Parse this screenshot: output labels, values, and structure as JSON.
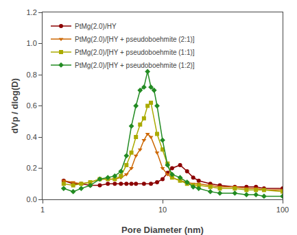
{
  "chart_data": {
    "type": "line",
    "xlabel": "Pore Diameter (nm)",
    "ylabel": "dVp / dlog(D)",
    "log": "x",
    "xlim": [
      1,
      100
    ],
    "xticks": [
      1,
      10,
      100
    ],
    "ylim": [
      0.0,
      1.2
    ],
    "yticks": [
      {
        "value": 0.0,
        "label": "0.0"
      },
      0.2,
      0.4,
      0.6,
      0.8,
      {
        "value": 1.0,
        "label": "1.0"
      },
      1.2
    ],
    "grid": false,
    "legend": "upper left",
    "series": [
      {
        "name": "PtMg(2.0)/HY",
        "color": "#8B0000",
        "marker": "circle",
        "x": [
          1.5,
          1.8,
          2.1,
          2.5,
          3.0,
          3.5,
          4.0,
          4.5,
          5.0,
          5.5,
          6.0,
          7.0,
          8.0,
          9.0,
          10.0,
          11.0,
          12.0,
          14.0,
          16.0,
          18.0,
          20.0,
          25.0,
          30.0,
          40.0,
          50.0,
          60.0,
          70.0,
          100.0
        ],
        "values": [
          0.12,
          0.1,
          0.1,
          0.09,
          0.09,
          0.1,
          0.1,
          0.1,
          0.1,
          0.1,
          0.1,
          0.1,
          0.1,
          0.11,
          0.13,
          0.17,
          0.2,
          0.22,
          0.18,
          0.14,
          0.12,
          0.1,
          0.09,
          0.08,
          0.08,
          0.08,
          0.07,
          0.07
        ]
      },
      {
        "name": "PtMg(2.0)/[HY + pseudoboehmite (2:1)]",
        "color": "#CC6600",
        "marker": "triangle-down",
        "x": [
          1.5,
          1.8,
          2.1,
          2.5,
          3.0,
          3.5,
          4.0,
          4.5,
          5.0,
          5.5,
          6.0,
          6.5,
          7.0,
          7.5,
          8.0,
          9.0,
          10.0,
          11.0,
          12.0,
          14.0,
          16.0,
          18.0,
          20.0,
          25.0,
          30.0,
          40.0,
          50.0,
          60.0,
          70.0,
          100.0
        ],
        "values": [
          0.12,
          0.11,
          0.1,
          0.11,
          0.13,
          0.13,
          0.13,
          0.14,
          0.16,
          0.2,
          0.28,
          0.32,
          0.38,
          0.42,
          0.4,
          0.3,
          0.2,
          0.16,
          0.14,
          0.12,
          0.11,
          0.1,
          0.1,
          0.09,
          0.08,
          0.08,
          0.07,
          0.07,
          0.06,
          0.06
        ]
      },
      {
        "name": "PtMg(2.0)/[HY + pseudoboehmite (1:1)]",
        "color": "#AAAA00",
        "marker": "square",
        "x": [
          1.5,
          1.8,
          2.1,
          2.5,
          3.0,
          3.5,
          4.0,
          4.5,
          5.0,
          5.5,
          6.0,
          6.5,
          7.0,
          7.5,
          8.0,
          9.0,
          10.0,
          11.0,
          12.0,
          14.0,
          16.0,
          18.0,
          20.0,
          25.0,
          30.0,
          40.0,
          50.0,
          60.0,
          70.0,
          100.0
        ],
        "values": [
          0.1,
          0.09,
          0.1,
          0.11,
          0.13,
          0.13,
          0.13,
          0.15,
          0.22,
          0.3,
          0.4,
          0.48,
          0.52,
          0.6,
          0.62,
          0.42,
          0.32,
          0.23,
          0.14,
          0.12,
          0.1,
          0.09,
          0.09,
          0.08,
          0.07,
          0.07,
          0.06,
          0.06,
          0.06,
          0.05
        ]
      },
      {
        "name": "PtMg(2.0)/[HY + pseudoboehmite (1:2)]",
        "color": "#228B22",
        "marker": "diamond",
        "x": [
          1.5,
          1.8,
          2.1,
          2.5,
          3.0,
          3.5,
          4.0,
          4.5,
          5.0,
          5.5,
          6.0,
          6.5,
          7.0,
          7.5,
          8.0,
          8.5,
          9.0,
          10.0,
          11.0,
          12.0,
          14.0,
          16.0,
          18.0,
          20.0,
          25.0,
          30.0,
          40.0,
          50.0,
          60.0,
          70.0,
          100.0
        ],
        "values": [
          0.07,
          0.05,
          0.07,
          0.09,
          0.13,
          0.14,
          0.15,
          0.18,
          0.28,
          0.47,
          0.6,
          0.7,
          0.72,
          0.82,
          0.72,
          0.7,
          0.6,
          0.38,
          0.22,
          0.16,
          0.14,
          0.11,
          0.08,
          0.07,
          0.05,
          0.04,
          0.04,
          0.03,
          0.03,
          0.02,
          0.02
        ]
      }
    ]
  }
}
